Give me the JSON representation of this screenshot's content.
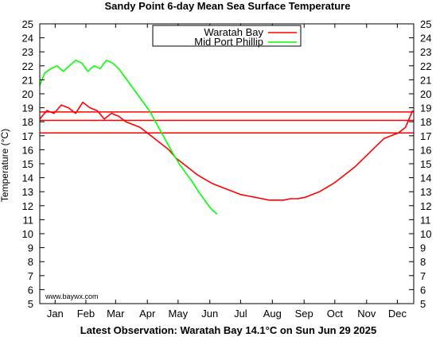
{
  "chart_data": {
    "type": "line",
    "title": "Sandy Point 6-day Mean Sea Surface Temperature",
    "ylabel": "Temperature (°C)",
    "xlabel": "",
    "ylim": [
      5,
      25
    ],
    "yticks": [
      5,
      6,
      7,
      8,
      9,
      10,
      11,
      12,
      13,
      14,
      15,
      16,
      17,
      18,
      19,
      20,
      21,
      22,
      23,
      24,
      25
    ],
    "xlim": [
      1,
      366
    ],
    "x_ticks": [
      {
        "label": "Jan",
        "day": 16
      },
      {
        "label": "Feb",
        "day": 46
      },
      {
        "label": "Mar",
        "day": 75
      },
      {
        "label": "Apr",
        "day": 106
      },
      {
        "label": "May",
        "day": 136
      },
      {
        "label": "Jun",
        "day": 167
      },
      {
        "label": "Jul",
        "day": 197
      },
      {
        "label": "Aug",
        "day": 228
      },
      {
        "label": "Sep",
        "day": 259
      },
      {
        "label": "Oct",
        "day": 289
      },
      {
        "label": "Nov",
        "day": 320
      },
      {
        "label": "Dec",
        "day": 350
      }
    ],
    "grid": false,
    "legend_position": "top-center",
    "reference_lines": [
      {
        "y": 18.7,
        "color": "#ff0000"
      },
      {
        "y": 18.1,
        "color": "#ff0000"
      },
      {
        "y": 17.2,
        "color": "#ff0000"
      }
    ],
    "series": [
      {
        "name": "Waratah Bay",
        "color": "#ff0000",
        "x": [
          1,
          8,
          15,
          22,
          29,
          36,
          43,
          50,
          57,
          64,
          71,
          78,
          85,
          92,
          99,
          106,
          113,
          120,
          127,
          134,
          141,
          148,
          155,
          162,
          169,
          176,
          183,
          190,
          197,
          204,
          211,
          218,
          225,
          232,
          239,
          246,
          253,
          260,
          267,
          274,
          281,
          288,
          295,
          302,
          309,
          316,
          323,
          330,
          337,
          344,
          351,
          358,
          365
        ],
        "y": [
          18.2,
          18.8,
          18.6,
          19.2,
          19.0,
          18.6,
          19.4,
          19.0,
          18.8,
          18.2,
          18.6,
          18.4,
          18.0,
          17.8,
          17.6,
          17.2,
          16.8,
          16.4,
          16.0,
          15.4,
          15.0,
          14.6,
          14.2,
          13.9,
          13.6,
          13.4,
          13.2,
          13.0,
          12.8,
          12.7,
          12.6,
          12.5,
          12.4,
          12.4,
          12.4,
          12.5,
          12.5,
          12.6,
          12.8,
          13.0,
          13.3,
          13.6,
          14.0,
          14.4,
          14.8,
          15.3,
          15.8,
          16.3,
          16.8,
          17.0,
          17.2,
          17.6,
          18.8
        ]
      },
      {
        "name": "Mid Port Phillip",
        "color": "#00ff00",
        "x": [
          1,
          6,
          12,
          18,
          24,
          30,
          36,
          42,
          48,
          54,
          60,
          66,
          72,
          78,
          84,
          90,
          96,
          102,
          108,
          114,
          120,
          126,
          132,
          138,
          144,
          150,
          156,
          162,
          168,
          174
        ],
        "y": [
          20.6,
          21.5,
          21.8,
          22.0,
          21.6,
          22.0,
          22.4,
          22.2,
          21.6,
          22.0,
          21.8,
          22.4,
          22.2,
          21.8,
          21.2,
          20.6,
          20.0,
          19.4,
          18.8,
          18.0,
          17.2,
          16.4,
          15.6,
          14.9,
          14.3,
          13.7,
          13.0,
          12.4,
          11.8,
          11.4
        ]
      }
    ]
  },
  "watermark": "www.baywx.com",
  "footer": "Latest Observation: Waratah Bay 14.1°C on Sun Jun 29 2025"
}
